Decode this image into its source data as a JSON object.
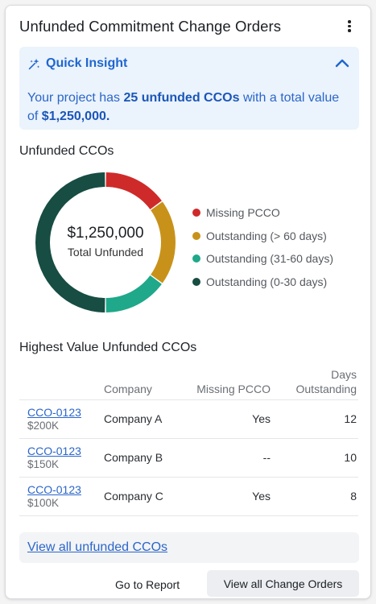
{
  "header": {
    "title": "Unfunded Commitment Change Orders",
    "menu_icon": "kebab-menu-icon"
  },
  "insight": {
    "title": "Quick Insight",
    "icon": "sparkle-icon",
    "collapse_icon": "chevron-up-icon",
    "text_prefix": "Your project has ",
    "highlight_count": "25 unfunded CCOs",
    "text_middle": " with a total value of ",
    "highlight_value": "$1,250,000."
  },
  "donut": {
    "section_label": "Unfunded CCOs",
    "center_value": "$1,250,000",
    "center_label": "Total Unfunded"
  },
  "chart_data": {
    "type": "pie",
    "donut": true,
    "categories": [
      "Missing PCCO",
      "Outstanding (> 60 days)",
      "Outstanding (31-60 days)",
      "Outstanding (0-30 days)"
    ],
    "values": [
      0.15,
      0.2,
      0.15,
      0.5
    ],
    "colors": [
      "#cf2a2a",
      "#c8921a",
      "#1fa88a",
      "#174d42"
    ]
  },
  "table": {
    "section_label": "Highest Value Unfunded CCOs",
    "headers": [
      "",
      "Company",
      "Missing PCCO",
      "Days Outstanding"
    ],
    "rows": [
      {
        "id": "CCO-0123",
        "amount": "$200K",
        "company": "Company A",
        "missing": "Yes",
        "days": "12"
      },
      {
        "id": "CCO-0123",
        "amount": "$150K",
        "company": "Company B",
        "missing": "--",
        "days": "10"
      },
      {
        "id": "CCO-0123",
        "amount": "$100K",
        "company": "Company C",
        "missing": "Yes",
        "days": "8"
      }
    ]
  },
  "footer": {
    "view_all_link": "View all unfunded CCOs",
    "go_to_report": "Go to Report",
    "view_all_change_orders": "View all Change Orders"
  }
}
